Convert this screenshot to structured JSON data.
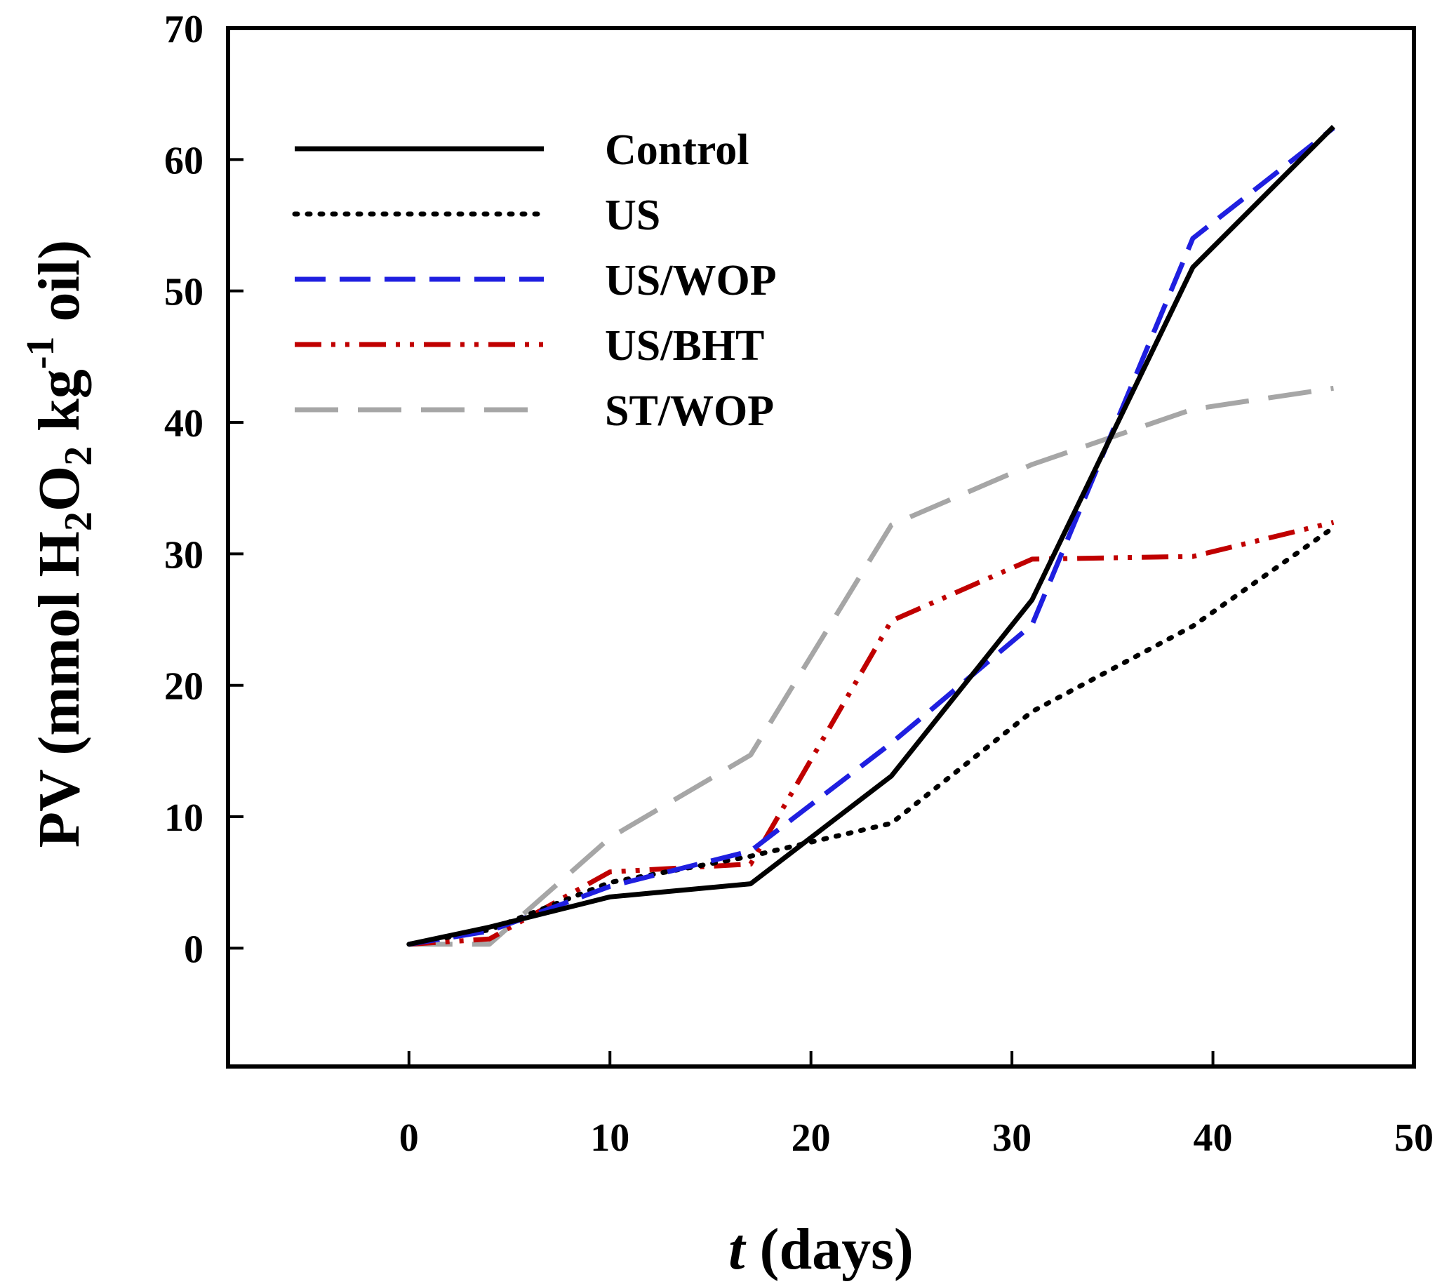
{
  "chart_data": {
    "type": "line",
    "title": "",
    "xlabel_var": "t",
    "xlabel_rest": " (days)",
    "ylabel_parts": [
      "PV (mmol H",
      "2",
      "O",
      "2",
      " kg",
      "-1",
      " oil)"
    ],
    "xlim": [
      -9,
      50
    ],
    "ylim": [
      -9,
      70
    ],
    "xticks": [
      0,
      10,
      20,
      30,
      40,
      50
    ],
    "yticks": [
      0,
      10,
      20,
      30,
      40,
      50,
      60,
      70
    ],
    "grid": false,
    "legend_position": "top-left",
    "series": [
      {
        "name": "Control",
        "color": "#000000",
        "style": "solid",
        "x": [
          0,
          4,
          10,
          17,
          24,
          31,
          39,
          46
        ],
        "y": [
          0.3,
          1.6,
          3.9,
          4.9,
          13.1,
          26.5,
          51.8,
          62.5
        ]
      },
      {
        "name": "US",
        "color": "#000000",
        "style": "dotted",
        "x": [
          0,
          4,
          10,
          17,
          24,
          31,
          39,
          46
        ],
        "y": [
          0.3,
          1.4,
          5.0,
          7.0,
          9.5,
          18.0,
          24.5,
          32.0
        ]
      },
      {
        "name": "US/WOP",
        "color": "#1f1fe0",
        "style": "dashed",
        "x": [
          0,
          4,
          10,
          17,
          24,
          31,
          39,
          46
        ],
        "y": [
          0.3,
          1.3,
          4.7,
          7.4,
          15.6,
          24.6,
          54.0,
          62.4
        ]
      },
      {
        "name": "US/BHT",
        "color": "#c00000",
        "style": "dash-dot-dot",
        "x": [
          0,
          4,
          10,
          17,
          24,
          31,
          39,
          46
        ],
        "y": [
          0.3,
          0.7,
          5.8,
          6.4,
          24.9,
          29.6,
          29.8,
          32.4
        ]
      },
      {
        "name": "ST/WOP",
        "color": "#a6a6a6",
        "style": "long-dash",
        "x": [
          0,
          4,
          10,
          17,
          24,
          31,
          39,
          46
        ],
        "y": [
          0.3,
          0.3,
          8.4,
          14.7,
          32.2,
          36.8,
          41.0,
          42.6
        ]
      }
    ]
  }
}
